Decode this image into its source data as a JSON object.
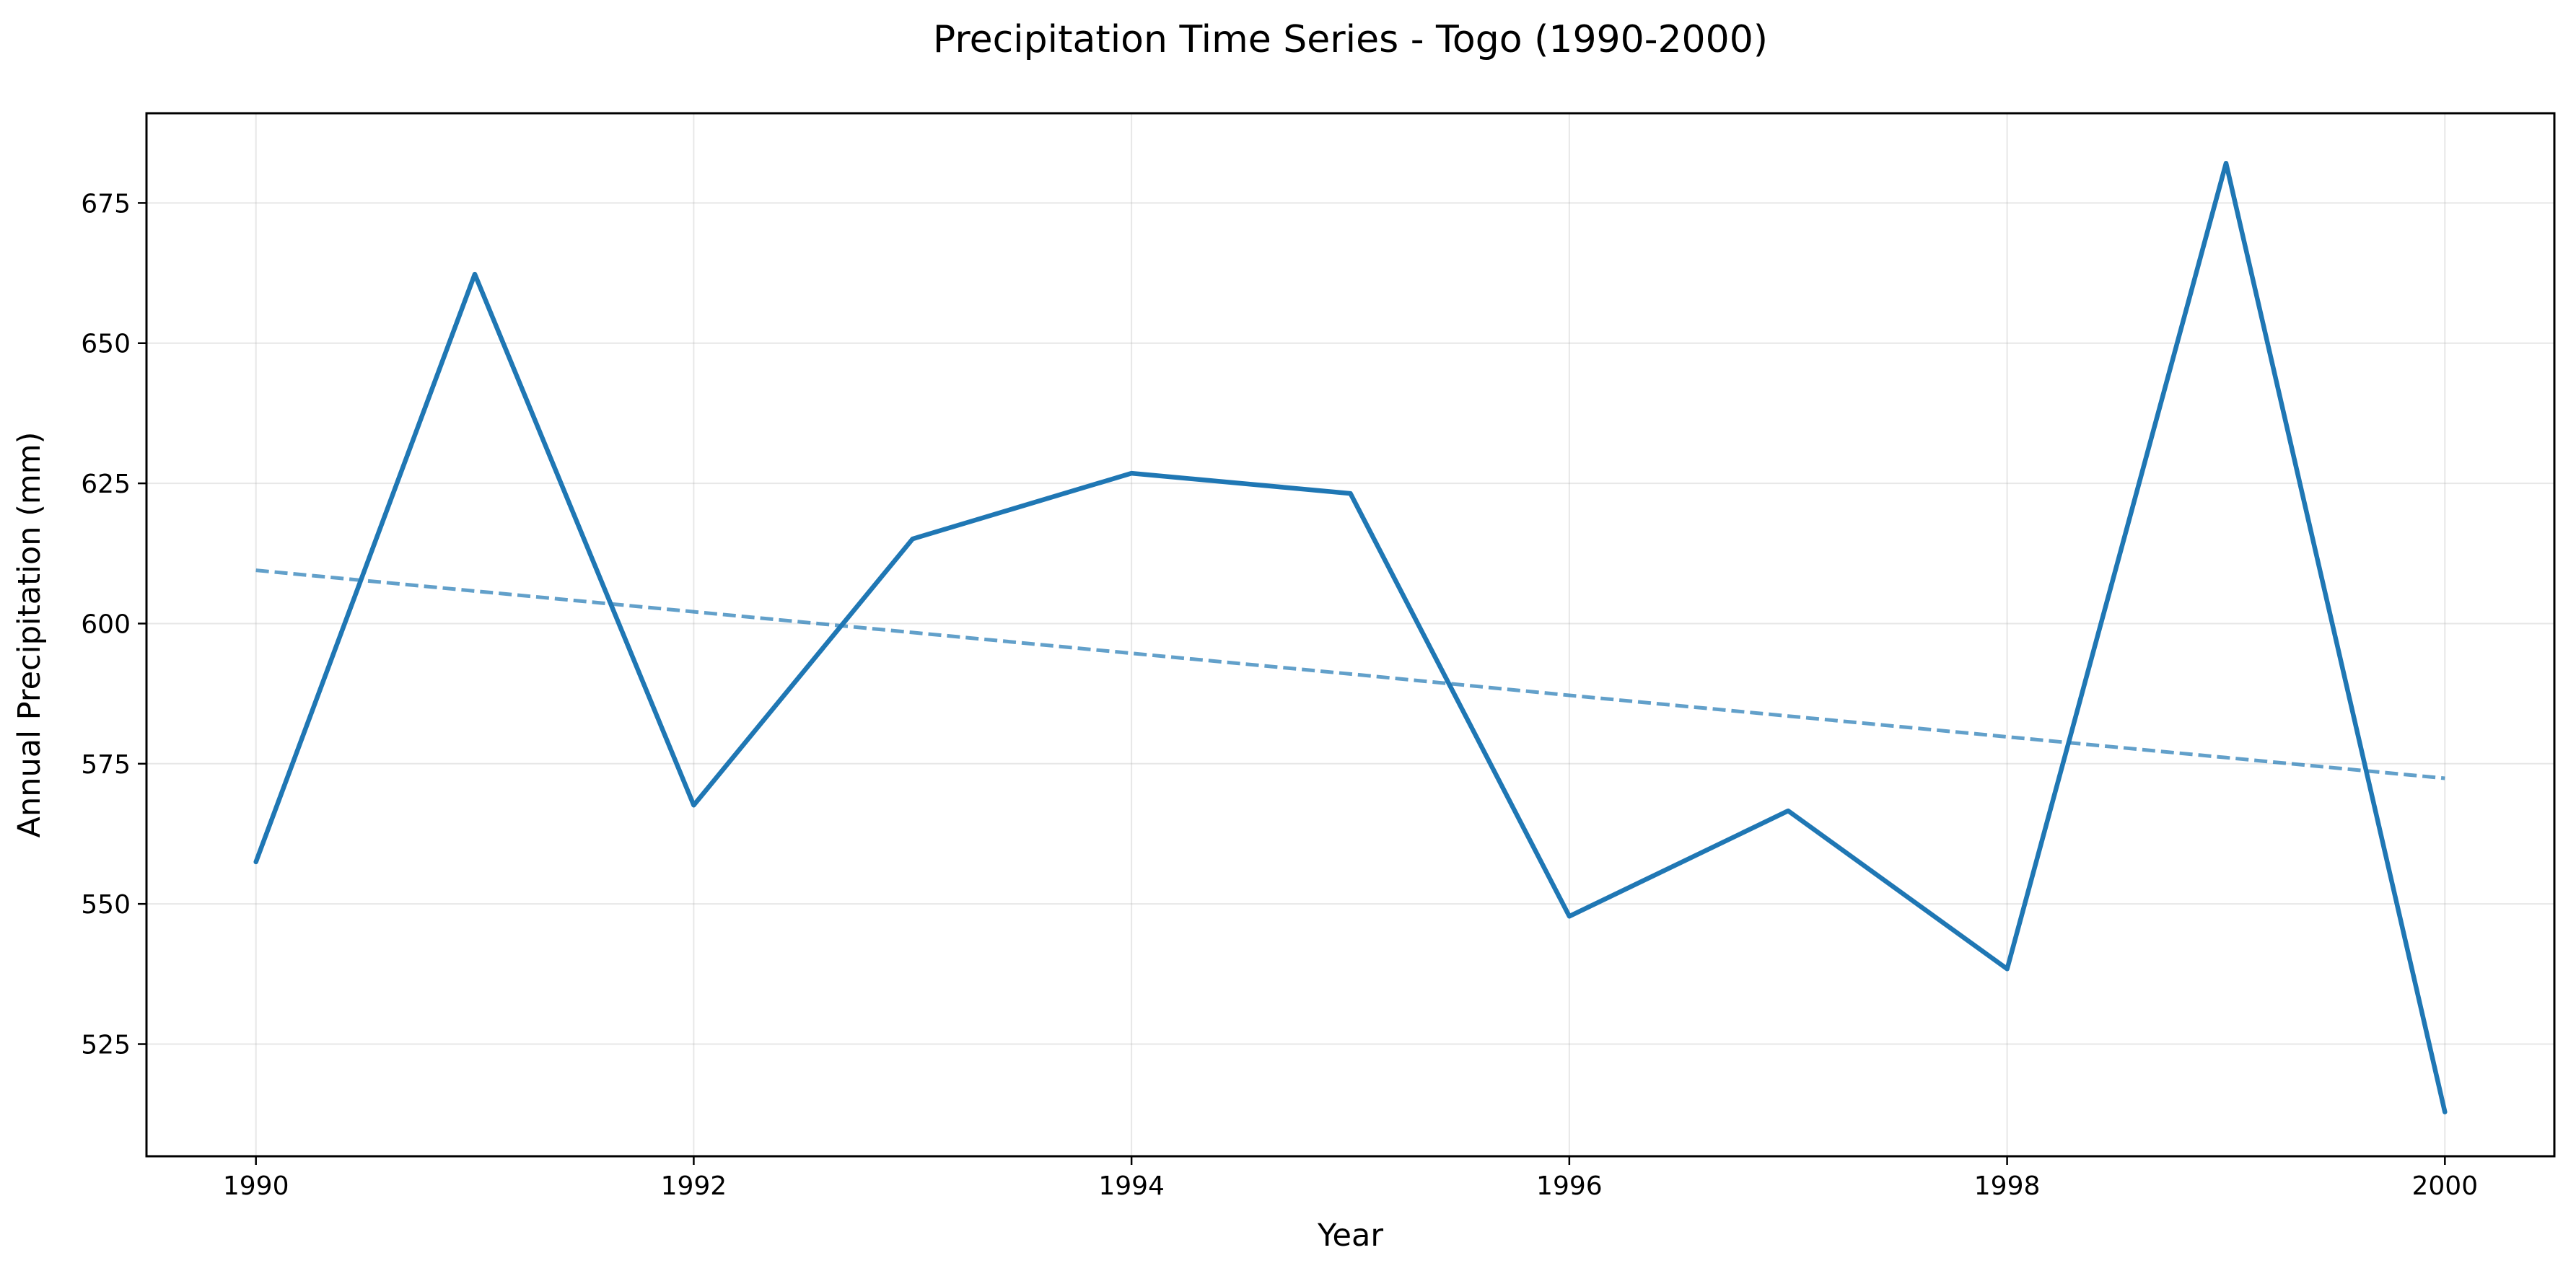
{
  "chart_data": {
    "type": "line",
    "title": "Precipitation Time Series - Togo (1990-2000)",
    "xlabel": "Year",
    "ylabel": "Annual Precipitation (mm)",
    "x": [
      1990,
      1991,
      1992,
      1993,
      1994,
      1995,
      1996,
      1997,
      1998,
      1999,
      2000
    ],
    "series": [
      {
        "values": [
          557.5,
          662.3,
          567.6,
          615.1,
          626.8,
          623.2,
          547.8,
          566.6,
          538.4,
          682.1,
          512.9
        ],
        "color": "#1f77b4",
        "style": "solid"
      },
      {
        "values": [
          609.5,
          605.8,
          602.1,
          598.4,
          594.7,
          591.0,
          587.2,
          583.5,
          579.8,
          576.1,
          572.4
        ],
        "color": "#1f77b4",
        "style": "dashed",
        "opacity": 0.7
      }
    ],
    "xlim": [
      1989.5,
      2000.5
    ],
    "ylim": [
      505.0,
      691.0
    ],
    "xticks": [
      1990,
      1992,
      1994,
      1996,
      1998,
      2000
    ],
    "yticks": [
      525,
      550,
      575,
      600,
      625,
      650,
      675
    ],
    "grid": true
  }
}
